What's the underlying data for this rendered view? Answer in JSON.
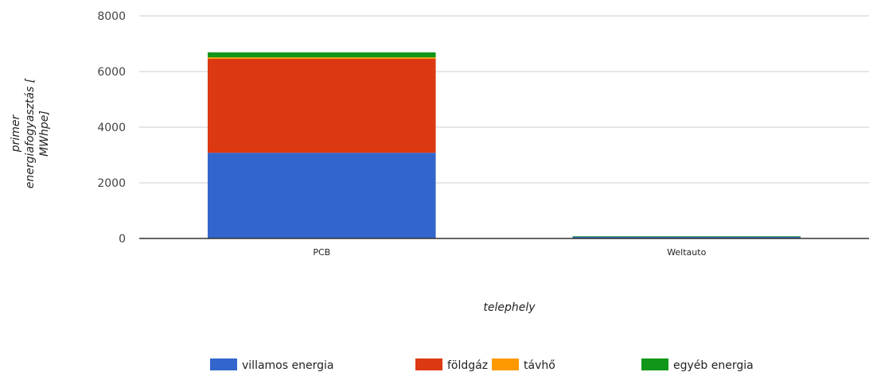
{
  "chart_data": {
    "type": "bar",
    "stacked": true,
    "categories": [
      "PCB",
      "Weltauto"
    ],
    "series": [
      {
        "name": "villamos energia",
        "color": "#3366cc",
        "values": [
          3080,
          60
        ]
      },
      {
        "name": "földgáz",
        "color": "#dc3912",
        "values": [
          3380,
          0
        ]
      },
      {
        "name": "távhő",
        "color": "#ff9900",
        "values": [
          50,
          0
        ]
      },
      {
        "name": "egyéb energia",
        "color": "#109618",
        "values": [
          180,
          20
        ]
      }
    ],
    "xlabel": "telephely",
    "ylabel": "primer energiafogyasztás [ MWhpe]",
    "ylabel_lines": [
      "primer",
      "energiafogyasztás [",
      "MWhpe]"
    ],
    "ylim": [
      0,
      8000
    ],
    "yticks": [
      0,
      2000,
      4000,
      6000,
      8000
    ],
    "grid": true,
    "legend_position": "bottom"
  }
}
